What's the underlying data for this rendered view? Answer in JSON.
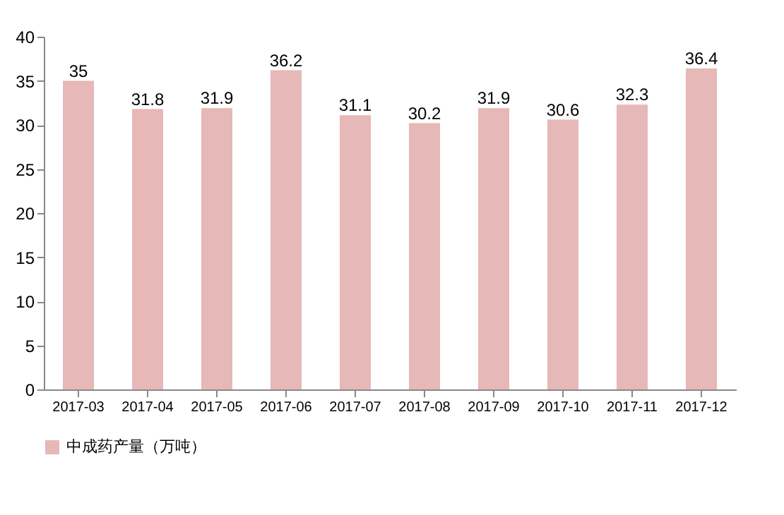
{
  "chart_data": {
    "type": "bar",
    "categories": [
      "2017-03",
      "2017-04",
      "2017-05",
      "2017-06",
      "2017-07",
      "2017-08",
      "2017-09",
      "2017-10",
      "2017-11",
      "2017-12"
    ],
    "series": [
      {
        "name": "中成药产量（万吨）",
        "color": "#e6b8b7",
        "values": [
          35,
          31.8,
          31.9,
          36.2,
          31.1,
          30.2,
          31.9,
          30.6,
          32.3,
          36.4
        ]
      }
    ],
    "ylim": [
      0,
      40
    ],
    "yticks": [
      0,
      5,
      10,
      15,
      20,
      25,
      30,
      35,
      40
    ],
    "data_labels": true,
    "legend": "bottom"
  }
}
